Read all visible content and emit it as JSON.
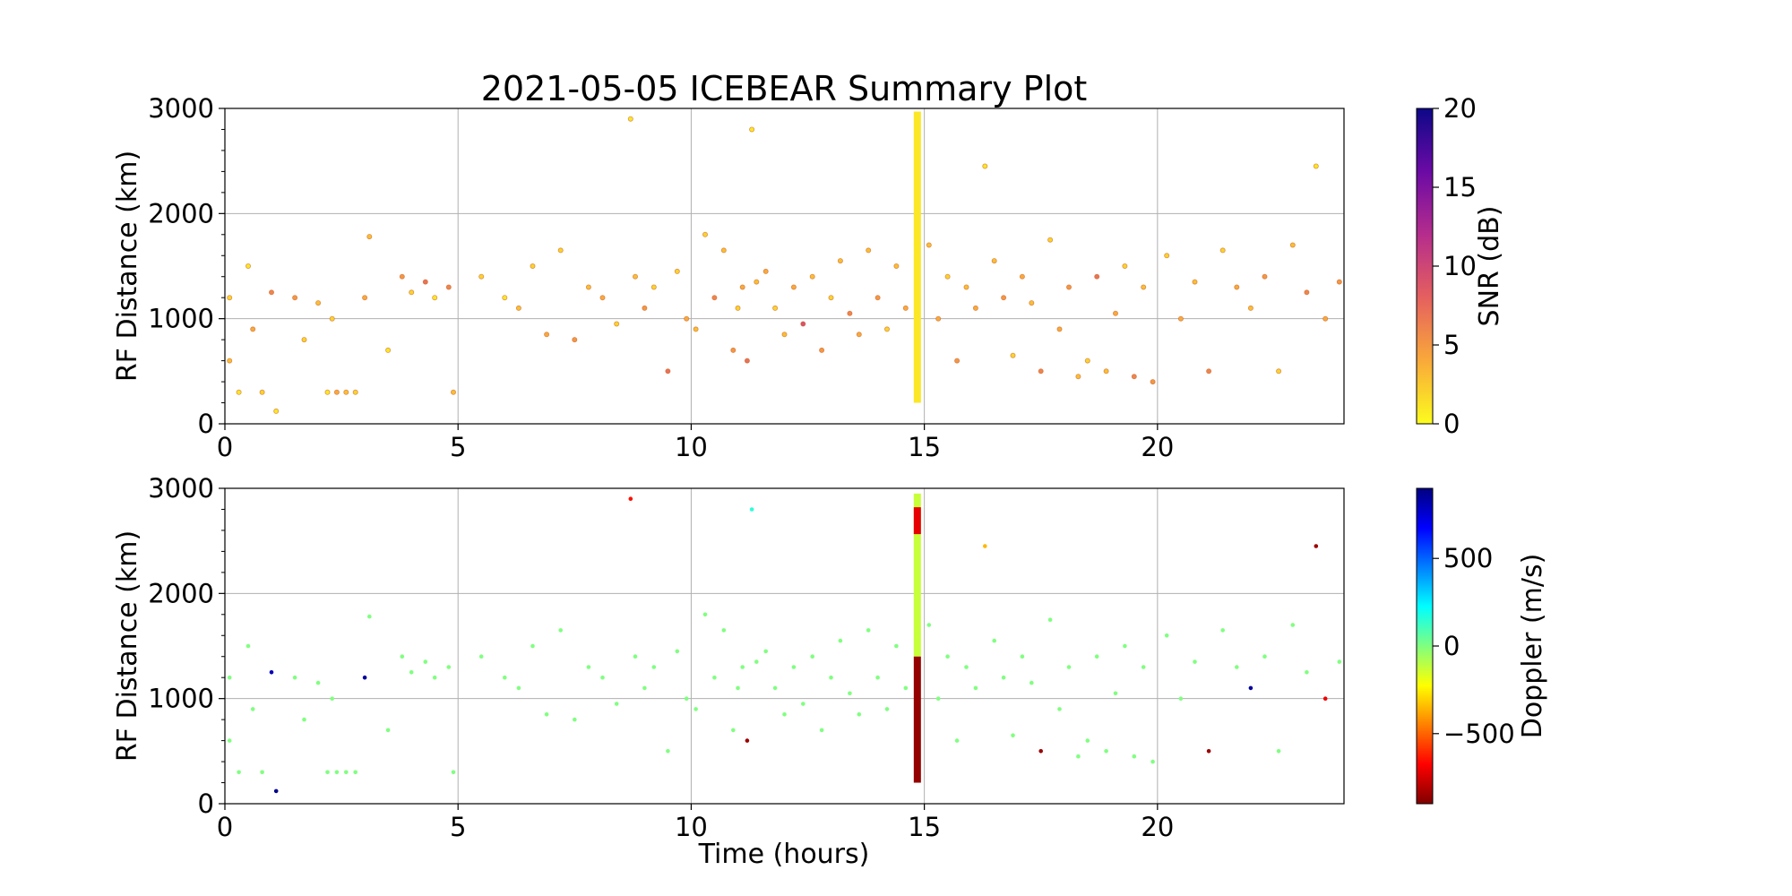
{
  "chart_data": {
    "type": "scatter",
    "title": "2021-05-05 ICEBEAR Summary Plot",
    "xlabel": "Time (hours)",
    "x_ticks": [
      "0",
      "5",
      "10",
      "15",
      "20"
    ],
    "x_tick_values": [
      0,
      5,
      10,
      15,
      20
    ],
    "xlim": [
      0,
      24
    ],
    "panels": [
      {
        "name": "snr",
        "ylabel": "RF Distance (km)",
        "ylim": [
          0,
          3000
        ],
        "y_ticks": [
          "0",
          "1000",
          "2000",
          "3000"
        ],
        "y_tick_values": [
          0,
          1000,
          2000,
          3000
        ],
        "grid": true,
        "colorbar": {
          "label": "SNR (dB)",
          "range": [
            0,
            20
          ],
          "ticks": [
            "0",
            "5",
            "10",
            "15",
            "20"
          ],
          "tick_values": [
            0,
            5,
            10,
            15,
            20
          ],
          "colormap": [
            "#fcfc1e",
            "#f9a93a",
            "#e5605e",
            "#b52d8c",
            "#6b0aa5",
            "#0d0887"
          ]
        }
      },
      {
        "name": "doppler",
        "ylabel": "RF Distance (km)",
        "ylim": [
          0,
          3000
        ],
        "y_ticks": [
          "0",
          "1000",
          "2000",
          "3000"
        ],
        "y_tick_values": [
          0,
          1000,
          2000,
          3000
        ],
        "grid": true,
        "colorbar": {
          "label": "Doppler (m/s)",
          "range": [
            -900,
            900
          ],
          "ticks": [
            "−500",
            "0",
            "500"
          ],
          "tick_values": [
            -500,
            0,
            500
          ],
          "colormap": [
            "#800000",
            "#ff0000",
            "#ff8000",
            "#ffff00",
            "#80ff80",
            "#00ffff",
            "#0080ff",
            "#0000ff",
            "#000080"
          ]
        }
      }
    ],
    "series": [
      {
        "name": "scatter events",
        "points_t": [
          0.1,
          0.1,
          0.3,
          0.5,
          0.6,
          0.8,
          1.0,
          1.1,
          1.5,
          1.7,
          2.0,
          2.2,
          2.3,
          2.4,
          2.6,
          2.8,
          3.0,
          3.1,
          3.5,
          3.8,
          4.0,
          4.3,
          4.5,
          4.8,
          4.9,
          5.5,
          6.0,
          6.3,
          6.6,
          6.9,
          7.2,
          7.5,
          7.8,
          8.1,
          8.4,
          8.7,
          8.8,
          9.0,
          9.2,
          9.5,
          9.7,
          9.9,
          10.1,
          10.3,
          10.5,
          10.7,
          10.9,
          11.0,
          11.1,
          11.2,
          11.3,
          11.4,
          11.6,
          11.8,
          12.0,
          12.2,
          12.4,
          12.6,
          12.8,
          13.0,
          13.2,
          13.4,
          13.6,
          13.8,
          14.0,
          14.2,
          14.4,
          14.6,
          15.1,
          15.3,
          15.5,
          15.7,
          15.9,
          16.1,
          16.3,
          16.5,
          16.7,
          16.9,
          17.1,
          17.3,
          17.5,
          17.7,
          17.9,
          18.1,
          18.3,
          18.5,
          18.7,
          18.9,
          19.1,
          19.3,
          19.5,
          19.7,
          19.9,
          20.2,
          20.5,
          20.8,
          21.1,
          21.4,
          21.7,
          22.0,
          22.3,
          22.6,
          22.9,
          23.2,
          23.4,
          23.6,
          23.9
        ],
        "points_r": [
          1200,
          600,
          300,
          1500,
          900,
          300,
          1250,
          120,
          1200,
          800,
          1150,
          300,
          1000,
          300,
          300,
          300,
          1200,
          1780,
          700,
          1400,
          1250,
          1350,
          1200,
          1300,
          300,
          1400,
          1200,
          1100,
          1500,
          850,
          1650,
          800,
          1300,
          1200,
          950,
          2900,
          1400,
          1100,
          1300,
          500,
          1450,
          1000,
          900,
          1800,
          1200,
          1650,
          700,
          1100,
          1300,
          600,
          2800,
          1350,
          1450,
          1100,
          850,
          1300,
          950,
          1400,
          700,
          1200,
          1550,
          1050,
          850,
          1650,
          1200,
          900,
          1500,
          1100,
          1700,
          1000,
          1400,
          600,
          1300,
          1100,
          2450,
          1550,
          1200,
          650,
          1400,
          1150,
          500,
          1750,
          900,
          1300,
          450,
          600,
          1400,
          500,
          1050,
          1500,
          450,
          1300,
          400,
          1600,
          1000,
          1350,
          500,
          1650,
          1300,
          1100,
          1400,
          500,
          1700,
          1250,
          2450,
          1000,
          1350
        ],
        "snr": [
          2,
          3,
          1,
          1,
          4,
          2,
          6,
          1,
          5,
          2,
          3,
          1,
          2,
          4,
          3,
          2,
          4,
          3,
          1,
          5,
          2,
          7,
          1,
          6,
          3,
          2,
          1,
          3,
          2,
          4,
          2,
          5,
          3,
          4,
          2,
          1,
          3,
          5,
          2,
          7,
          2,
          4,
          3,
          2,
          6,
          3,
          5,
          2,
          4,
          7,
          1,
          3,
          4,
          2,
          3,
          4,
          9,
          3,
          5,
          2,
          3,
          6,
          4,
          3,
          5,
          2,
          3,
          4,
          3,
          4,
          2,
          5,
          3,
          4,
          1,
          3,
          5,
          2,
          4,
          3,
          6,
          2,
          4,
          5,
          3,
          2,
          7,
          3,
          4,
          2,
          6,
          3,
          5,
          2,
          4,
          3,
          6,
          2,
          4,
          3,
          5,
          2,
          3,
          6,
          1,
          4,
          5
        ],
        "doppler": [
          0,
          0,
          0,
          0,
          0,
          0,
          800,
          880,
          0,
          0,
          0,
          0,
          0,
          0,
          0,
          0,
          850,
          0,
          0,
          0,
          0,
          0,
          0,
          0,
          0,
          0,
          0,
          0,
          0,
          0,
          0,
          0,
          0,
          0,
          0,
          -650,
          0,
          0,
          0,
          0,
          0,
          0,
          0,
          0,
          0,
          0,
          0,
          0,
          0,
          -850,
          150,
          0,
          0,
          0,
          0,
          0,
          0,
          0,
          0,
          0,
          0,
          0,
          0,
          0,
          0,
          0,
          0,
          0,
          0,
          0,
          0,
          0,
          0,
          0,
          -350,
          0,
          0,
          0,
          0,
          0,
          -850,
          0,
          0,
          0,
          0,
          0,
          0,
          0,
          0,
          0,
          0,
          0,
          0,
          0,
          0,
          0,
          -850,
          0,
          0,
          850,
          0,
          0,
          0,
          0,
          -850,
          -700,
          0
        ]
      }
    ]
  }
}
